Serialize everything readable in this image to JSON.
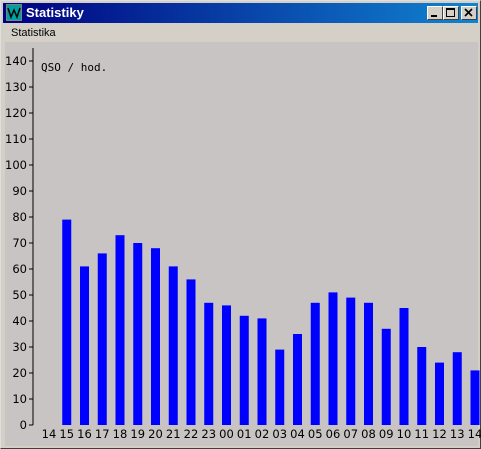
{
  "window": {
    "title": "Statistiky"
  },
  "menu": {
    "items": [
      "Statistika"
    ]
  },
  "colors": {
    "titlebar": "#000080",
    "bar": "#0000ff",
    "plot_bg": "#c8c4c4"
  },
  "chart_data": {
    "type": "bar",
    "title": "QSO / hod.",
    "categories": [
      "14",
      "15",
      "16",
      "17",
      "18",
      "19",
      "20",
      "21",
      "22",
      "23",
      "00",
      "01",
      "02",
      "03",
      "04",
      "05",
      "06",
      "07",
      "08",
      "09",
      "10",
      "11",
      "12",
      "13",
      "14"
    ],
    "values": [
      0,
      79,
      61,
      66,
      73,
      70,
      68,
      61,
      56,
      47,
      46,
      42,
      41,
      29,
      35,
      47,
      51,
      49,
      47,
      37,
      45,
      30,
      24,
      28,
      21
    ],
    "yticks": [
      0,
      10,
      20,
      30,
      40,
      50,
      60,
      70,
      80,
      90,
      100,
      110,
      120,
      130,
      140
    ],
    "ylim": [
      0,
      145
    ],
    "grid": false,
    "legend": "none"
  }
}
